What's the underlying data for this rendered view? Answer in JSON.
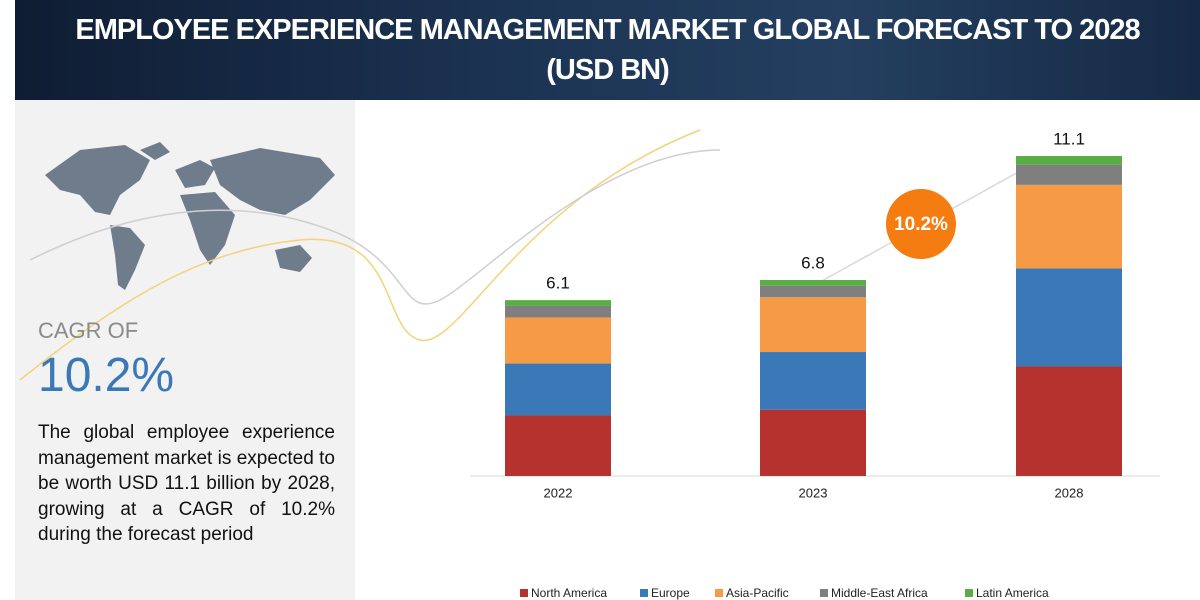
{
  "chart_data": {
    "type": "stacked-bar",
    "title": "EMPLOYEE EXPERIENCE MANAGEMENT MARKET GLOBAL FORECAST TO 2028",
    "units": "(USD BN)",
    "annotation": "10.2%",
    "categories": [
      "2022",
      "2023",
      "2028"
    ],
    "totals": [
      6.1,
      6.8,
      11.1
    ],
    "series": [
      {
        "name": "North America",
        "color": "#b5322e",
        "values": [
          2.1,
          2.3,
          3.8
        ]
      },
      {
        "name": "Europe",
        "color": "#3a78b8",
        "values": [
          1.8,
          2.0,
          3.4
        ]
      },
      {
        "name": "Asia-Pacific",
        "color": "#f79a46",
        "values": [
          1.6,
          1.9,
          2.9
        ]
      },
      {
        "name": "Middle-East Africa",
        "color": "#7f7f7f",
        "values": [
          0.4,
          0.4,
          0.7
        ]
      },
      {
        "name": "Latin America",
        "color": "#5aac44",
        "values": [
          0.2,
          0.2,
          0.3
        ]
      }
    ]
  },
  "sidebar": {
    "cagr_label": "CAGR OF",
    "cagr_value": "10.2%",
    "description": "The global employee experience management market is expected to be worth USD 11.1 billion by 2028, growing at a CAGR of 10.2% during the forecast period"
  }
}
